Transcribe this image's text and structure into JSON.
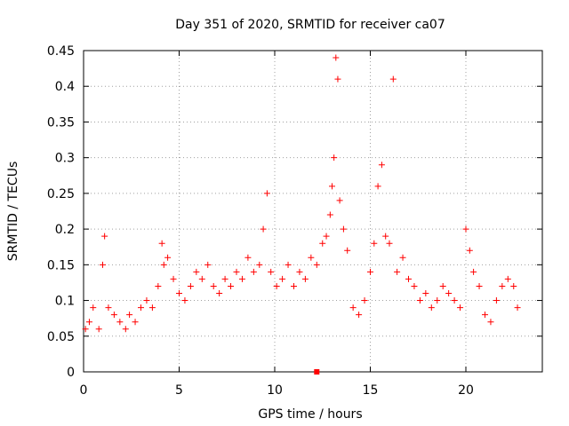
{
  "chart_data": {
    "type": "scatter",
    "title": "Day 351 of 2020, SRMTID for receiver ca07",
    "xlabel": "GPS time / hours",
    "ylabel": "SRMTID / TECUs",
    "xlim": [
      0,
      24
    ],
    "ylim": [
      0,
      0.45
    ],
    "xticks": [
      0,
      5,
      10,
      15,
      20
    ],
    "xtick_labels": [
      "0",
      "5",
      "10",
      "15",
      "20"
    ],
    "yticks": [
      0,
      0.05,
      0.1,
      0.15,
      0.2,
      0.25,
      0.3,
      0.35,
      0.4,
      0.45
    ],
    "ytick_labels": [
      "0",
      "0.05",
      "0.1",
      "0.15",
      "0.2",
      "0.25",
      "0.3",
      "0.35",
      "0.4",
      "0.45"
    ],
    "grid": true,
    "marker": "+",
    "colors": {
      "points": "#ff0000",
      "grid": "#a0a0a0",
      "axes": "#000000"
    },
    "series": [
      {
        "name": "SRMTID",
        "x": [
          0.1,
          0.3,
          0.5,
          0.8,
          1.0,
          1.1,
          1.3,
          1.6,
          1.9,
          2.2,
          2.4,
          2.7,
          3.0,
          3.3,
          3.6,
          3.9,
          4.1,
          4.2,
          4.4,
          4.7,
          5.0,
          5.3,
          5.6,
          5.9,
          6.2,
          6.5,
          6.8,
          7.1,
          7.4,
          7.7,
          8.0,
          8.3,
          8.6,
          8.9,
          9.2,
          9.4,
          9.6,
          9.8,
          10.1,
          10.4,
          10.7,
          11.0,
          11.3,
          11.6,
          11.9,
          12.2,
          12.5,
          12.7,
          12.9,
          13.0,
          13.1,
          13.2,
          13.3,
          13.4,
          13.6,
          13.8,
          14.1,
          14.4,
          14.7,
          15.0,
          15.2,
          15.4,
          15.6,
          15.8,
          16.0,
          16.2,
          16.4,
          16.7,
          17.0,
          17.3,
          17.6,
          17.9,
          18.2,
          18.5,
          18.8,
          19.1,
          19.4,
          19.7,
          20.0,
          20.2,
          20.4,
          20.7,
          21.0,
          21.3,
          21.6,
          21.9,
          22.2,
          22.5,
          22.7
        ],
        "y": [
          0.06,
          0.07,
          0.09,
          0.06,
          0.15,
          0.19,
          0.09,
          0.08,
          0.07,
          0.06,
          0.08,
          0.07,
          0.09,
          0.1,
          0.09,
          0.12,
          0.18,
          0.15,
          0.16,
          0.13,
          0.11,
          0.1,
          0.12,
          0.14,
          0.13,
          0.15,
          0.12,
          0.11,
          0.13,
          0.12,
          0.14,
          0.13,
          0.16,
          0.14,
          0.15,
          0.2,
          0.25,
          0.14,
          0.12,
          0.13,
          0.15,
          0.12,
          0.14,
          0.13,
          0.16,
          0.15,
          0.18,
          0.19,
          0.22,
          0.26,
          0.3,
          0.44,
          0.41,
          0.24,
          0.2,
          0.17,
          0.09,
          0.08,
          0.1,
          0.14,
          0.18,
          0.26,
          0.29,
          0.19,
          0.18,
          0.41,
          0.14,
          0.16,
          0.13,
          0.12,
          0.1,
          0.11,
          0.09,
          0.1,
          0.12,
          0.11,
          0.1,
          0.09,
          0.2,
          0.17,
          0.14,
          0.12,
          0.08,
          0.07,
          0.1,
          0.12,
          0.13,
          0.12,
          0.09
        ]
      }
    ],
    "outlier_markers": [
      {
        "x": 12.2,
        "y": 0.0
      }
    ]
  }
}
